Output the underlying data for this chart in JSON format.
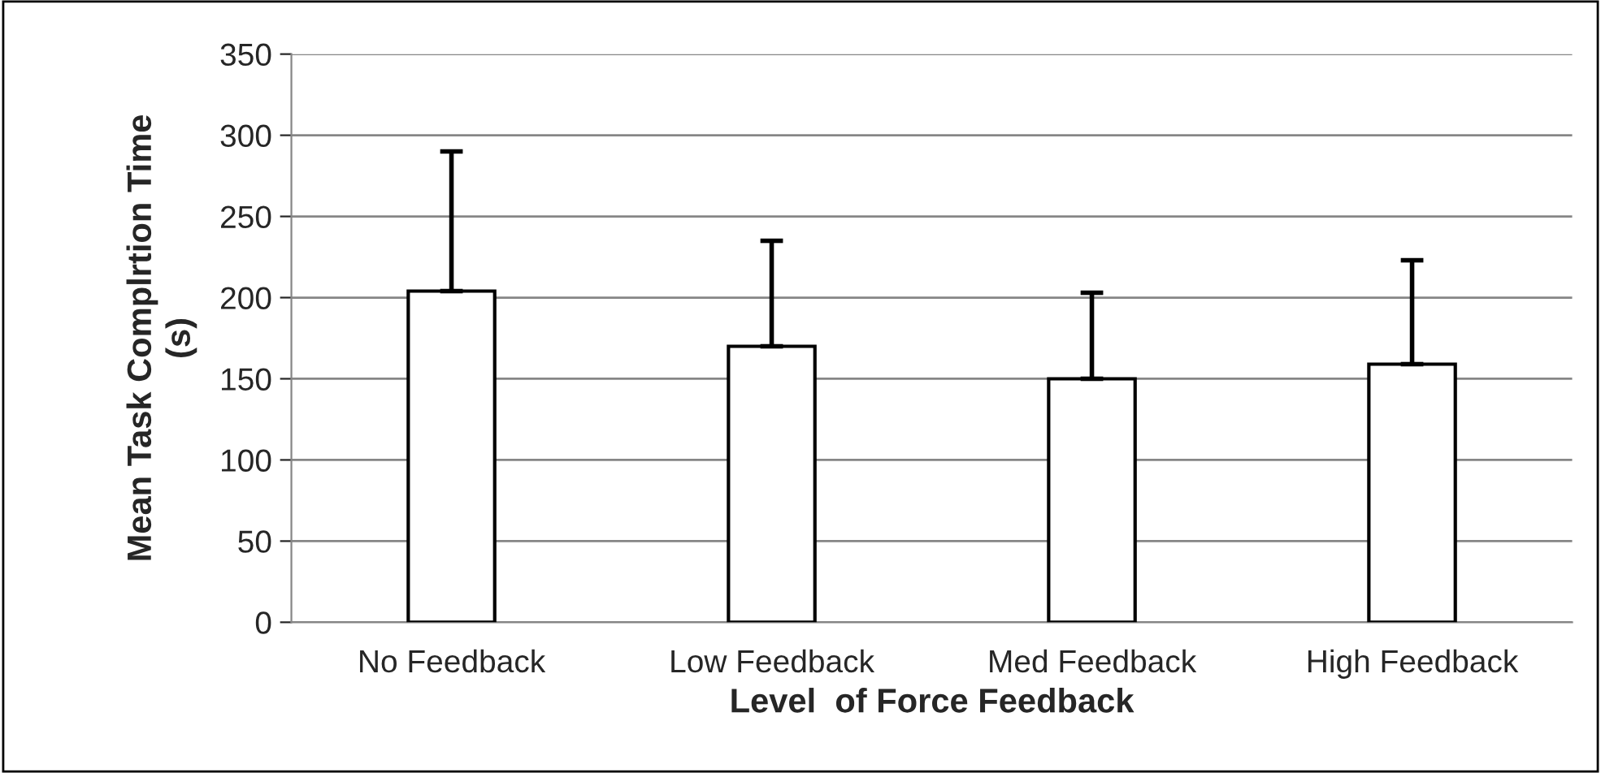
{
  "chart_data": {
    "type": "bar",
    "xlabel": "Level  of Force Feedback",
    "ylabel": "Mean Task Complrtion Time\n(s)",
    "categories": [
      "No Feedback",
      "Low Feedback",
      "Med Feedback",
      "High Feedback"
    ],
    "values": [
      204,
      170,
      150,
      159
    ],
    "errors": [
      [
        204,
        290
      ],
      [
        170,
        235
      ],
      [
        150,
        203
      ],
      [
        159,
        223
      ]
    ],
    "color": "#ffffff",
    "ylim": [
      0,
      350
    ],
    "yticks": [
      0,
      50,
      100,
      150,
      200,
      250,
      300,
      350
    ],
    "grid": "y"
  }
}
